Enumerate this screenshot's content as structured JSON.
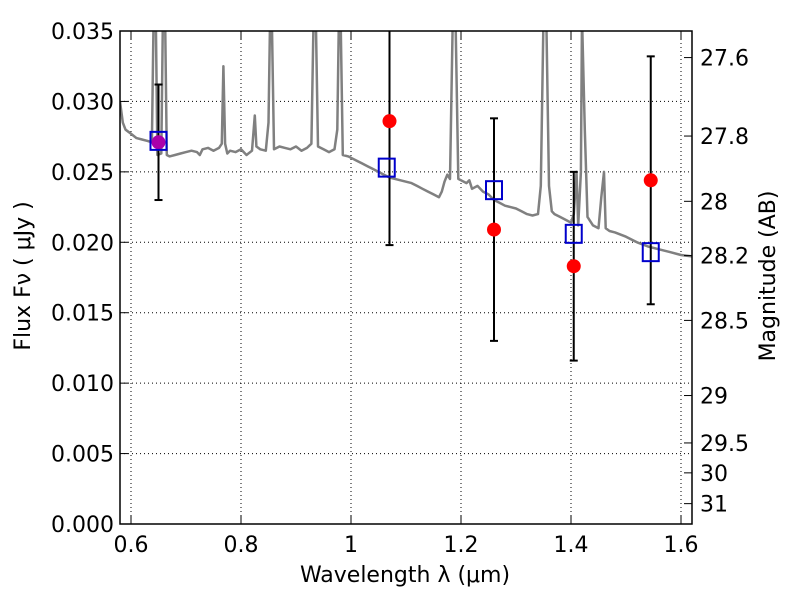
{
  "chart_data": {
    "type": "scatter",
    "xlabel": "Wavelength  λ (μm)",
    "ylabel": "Flux  Fν  ( μJy )",
    "y2label": "Magnitude (AB)",
    "xlim": [
      0.58,
      1.62
    ],
    "ylim": [
      0.0,
      0.035
    ],
    "x_ticks": [
      "0.6",
      "0.8",
      "1",
      "1.2",
      "1.4",
      "1.6"
    ],
    "x_tick_values": [
      0.6,
      0.8,
      1.0,
      1.2,
      1.4,
      1.6
    ],
    "y_ticks": [
      "0.000",
      "0.005",
      "0.010",
      "0.015",
      "0.020",
      "0.025",
      "0.030",
      "0.035"
    ],
    "y_tick_values": [
      0.0,
      0.005,
      0.01,
      0.015,
      0.02,
      0.025,
      0.03,
      0.035
    ],
    "y2_ticks": [
      {
        "label": "27.6",
        "mag": 27.6
      },
      {
        "label": "27.8",
        "mag": 27.8
      },
      {
        "label": "28",
        "mag": 28.0
      },
      {
        "label": "28.2",
        "mag": 28.2
      },
      {
        "label": "28.5",
        "mag": 28.5
      },
      {
        "label": "29",
        "mag": 29.0
      },
      {
        "label": "29.5",
        "mag": 29.5
      },
      {
        "label": "30",
        "mag": 30.0
      },
      {
        "label": "31",
        "mag": 31.0
      }
    ],
    "grid": true,
    "colors": {
      "model": "#808080",
      "observed": "#ff0000",
      "model_photometry": "#0000cc",
      "errorbar": "#000000",
      "overlap": "#aa00aa"
    },
    "series": [
      {
        "role": "observed",
        "marker": "circle",
        "points": [
          {
            "x": 0.65,
            "y": 0.0271,
            "err": 0.0041
          },
          {
            "x": 1.07,
            "y": 0.0286,
            "err": 0.0088
          },
          {
            "x": 1.26,
            "y": 0.0209,
            "err": 0.0079
          },
          {
            "x": 1.405,
            "y": 0.0183,
            "err": 0.0067
          },
          {
            "x": 1.545,
            "y": 0.0244,
            "err": 0.0088
          }
        ]
      },
      {
        "role": "model_photometry",
        "marker": "square-open",
        "points": [
          {
            "x": 0.65,
            "y": 0.0272
          },
          {
            "x": 1.065,
            "y": 0.0253
          },
          {
            "x": 1.26,
            "y": 0.0237
          },
          {
            "x": 1.405,
            "y": 0.0206
          },
          {
            "x": 1.545,
            "y": 0.0193
          }
        ]
      },
      {
        "role": "model",
        "line": true,
        "points": [
          [
            0.58,
            0.03
          ],
          [
            0.585,
            0.0285
          ],
          [
            0.59,
            0.028
          ],
          [
            0.6,
            0.0277
          ],
          [
            0.61,
            0.0274
          ],
          [
            0.62,
            0.0273
          ],
          [
            0.63,
            0.0272
          ],
          [
            0.638,
            0.0271
          ],
          [
            0.641,
            0.036
          ],
          [
            0.645,
            0.036
          ],
          [
            0.648,
            0.0262
          ],
          [
            0.655,
            0.0263
          ],
          [
            0.658,
            0.036
          ],
          [
            0.662,
            0.036
          ],
          [
            0.665,
            0.0262
          ],
          [
            0.67,
            0.0261
          ],
          [
            0.68,
            0.0262
          ],
          [
            0.69,
            0.0263
          ],
          [
            0.7,
            0.0264
          ],
          [
            0.71,
            0.0265
          ],
          [
            0.72,
            0.0264
          ],
          [
            0.725,
            0.0262
          ],
          [
            0.73,
            0.0266
          ],
          [
            0.74,
            0.0267
          ],
          [
            0.75,
            0.0265
          ],
          [
            0.76,
            0.0267
          ],
          [
            0.765,
            0.027
          ],
          [
            0.768,
            0.0325
          ],
          [
            0.771,
            0.027
          ],
          [
            0.775,
            0.0263
          ],
          [
            0.78,
            0.0265
          ],
          [
            0.79,
            0.0264
          ],
          [
            0.8,
            0.0266
          ],
          [
            0.81,
            0.0262
          ],
          [
            0.82,
            0.0265
          ],
          [
            0.825,
            0.029
          ],
          [
            0.828,
            0.0268
          ],
          [
            0.835,
            0.0266
          ],
          [
            0.845,
            0.0265
          ],
          [
            0.85,
            0.0285
          ],
          [
            0.853,
            0.036
          ],
          [
            0.856,
            0.036
          ],
          [
            0.86,
            0.0266
          ],
          [
            0.87,
            0.0268
          ],
          [
            0.88,
            0.0267
          ],
          [
            0.89,
            0.0266
          ],
          [
            0.9,
            0.0268
          ],
          [
            0.91,
            0.0265
          ],
          [
            0.92,
            0.0267
          ],
          [
            0.928,
            0.027
          ],
          [
            0.932,
            0.036
          ],
          [
            0.936,
            0.036
          ],
          [
            0.94,
            0.0268
          ],
          [
            0.95,
            0.0266
          ],
          [
            0.96,
            0.0264
          ],
          [
            0.97,
            0.0266
          ],
          [
            0.975,
            0.028
          ],
          [
            0.978,
            0.036
          ],
          [
            0.981,
            0.036
          ],
          [
            0.985,
            0.0262
          ],
          [
            0.995,
            0.0261
          ],
          [
            1.0,
            0.026
          ],
          [
            1.01,
            0.0258
          ],
          [
            1.02,
            0.0256
          ],
          [
            1.03,
            0.0254
          ],
          [
            1.04,
            0.0252
          ],
          [
            1.05,
            0.025
          ],
          [
            1.06,
            0.0248
          ],
          [
            1.07,
            0.0246
          ],
          [
            1.08,
            0.0245
          ],
          [
            1.09,
            0.0244
          ],
          [
            1.1,
            0.0243
          ],
          [
            1.11,
            0.0242
          ],
          [
            1.12,
            0.024
          ],
          [
            1.13,
            0.0238
          ],
          [
            1.14,
            0.0236
          ],
          [
            1.15,
            0.0234
          ],
          [
            1.16,
            0.0232
          ],
          [
            1.165,
            0.0236
          ],
          [
            1.17,
            0.0243
          ],
          [
            1.175,
            0.0248
          ],
          [
            1.18,
            0.0245
          ],
          [
            1.185,
            0.036
          ],
          [
            1.19,
            0.036
          ],
          [
            1.195,
            0.0245
          ],
          [
            1.2,
            0.0244
          ],
          [
            1.21,
            0.0242
          ],
          [
            1.215,
            0.0244
          ],
          [
            1.22,
            0.0238
          ],
          [
            1.23,
            0.024
          ],
          [
            1.24,
            0.0236
          ],
          [
            1.25,
            0.0234
          ],
          [
            1.26,
            0.023
          ],
          [
            1.27,
            0.0228
          ],
          [
            1.28,
            0.0226
          ],
          [
            1.29,
            0.0225
          ],
          [
            1.3,
            0.0224
          ],
          [
            1.31,
            0.0222
          ],
          [
            1.32,
            0.022
          ],
          [
            1.33,
            0.0219
          ],
          [
            1.34,
            0.022
          ],
          [
            1.345,
            0.024
          ],
          [
            1.35,
            0.036
          ],
          [
            1.355,
            0.036
          ],
          [
            1.36,
            0.024
          ],
          [
            1.365,
            0.0222
          ],
          [
            1.37,
            0.022
          ],
          [
            1.38,
            0.0218
          ],
          [
            1.39,
            0.0216
          ],
          [
            1.4,
            0.0214
          ],
          [
            1.405,
            0.022
          ],
          [
            1.41,
            0.025
          ],
          [
            1.413,
            0.0212
          ],
          [
            1.418,
            0.025
          ],
          [
            1.42,
            0.036
          ],
          [
            1.425,
            0.028
          ],
          [
            1.43,
            0.0218
          ],
          [
            1.44,
            0.0212
          ],
          [
            1.45,
            0.021
          ],
          [
            1.455,
            0.0232
          ],
          [
            1.46,
            0.025
          ],
          [
            1.463,
            0.021
          ],
          [
            1.47,
            0.0208
          ],
          [
            1.48,
            0.0207
          ],
          [
            1.5,
            0.0204
          ],
          [
            1.52,
            0.02
          ],
          [
            1.54,
            0.0197
          ],
          [
            1.56,
            0.0195
          ],
          [
            1.58,
            0.0193
          ],
          [
            1.6,
            0.0191
          ],
          [
            1.62,
            0.019
          ]
        ]
      }
    ]
  }
}
